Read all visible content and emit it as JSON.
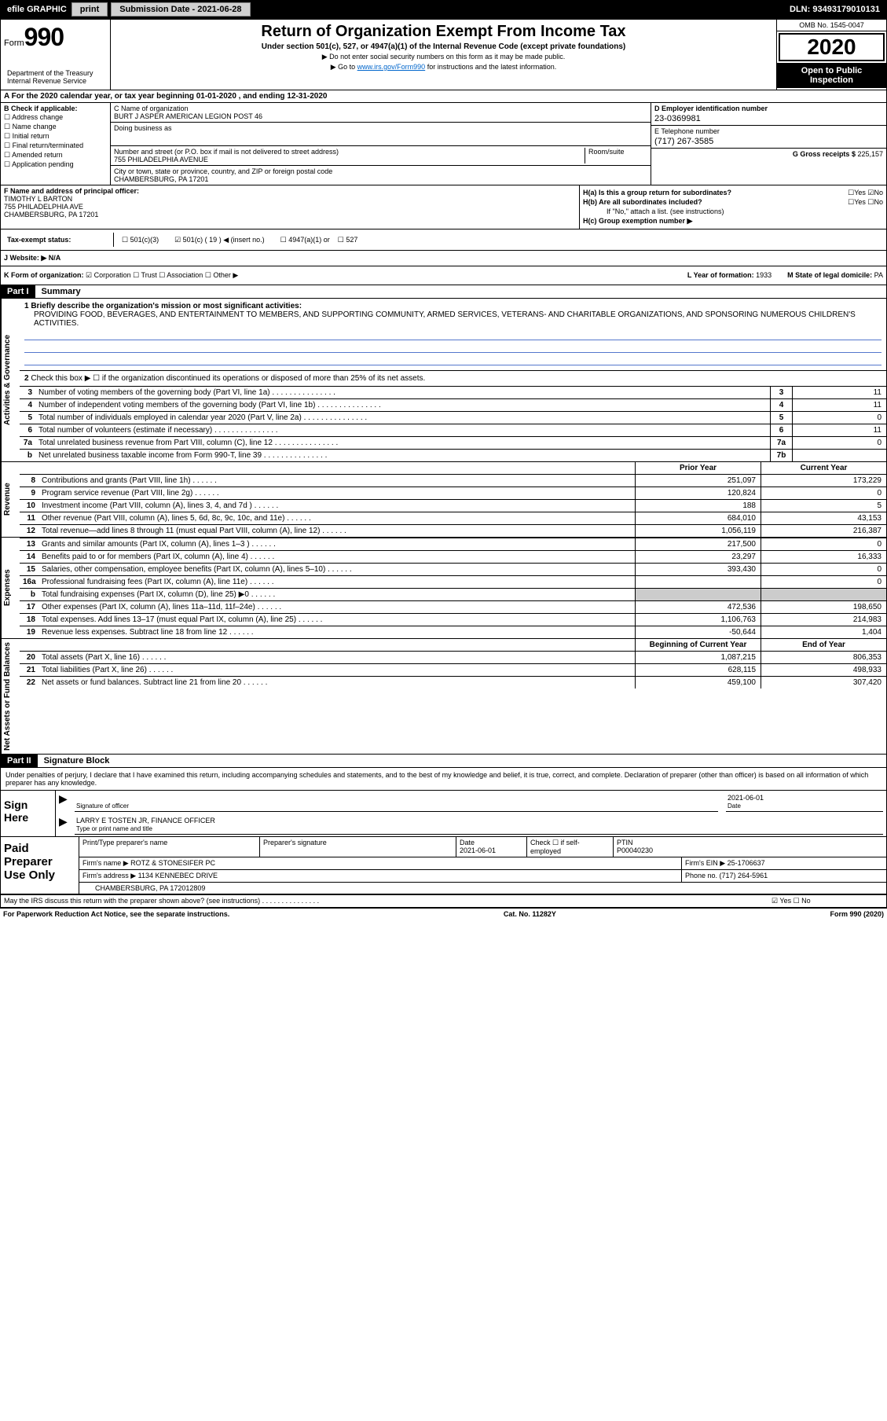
{
  "topbar": {
    "efile": "efile GRAPHIC",
    "print": "print",
    "sub_label": "Submission Date - 2021-06-28",
    "dln": "DLN: 93493179010131"
  },
  "header": {
    "form_label": "Form",
    "form_num": "990",
    "dept": "Department of the Treasury\nInternal Revenue Service",
    "title": "Return of Organization Exempt From Income Tax",
    "sub1": "Under section 501(c), 527, or 4947(a)(1) of the Internal Revenue Code (except private foundations)",
    "sub2a": "▶ Do not enter social security numbers on this form as it may be made public.",
    "sub2b": "▶ Go to ",
    "link": "www.irs.gov/Form990",
    "sub2c": " for instructions and the latest information.",
    "omb": "OMB No. 1545-0047",
    "year": "2020",
    "inspection": "Open to Public Inspection"
  },
  "rowA": "A For the 2020 calendar year, or tax year beginning 01-01-2020    , and ending 12-31-2020",
  "colB": {
    "header": "B Check if applicable:",
    "items": [
      "Address change",
      "Name change",
      "Initial return",
      "Final return/terminated",
      "Amended return",
      "Application pending"
    ]
  },
  "colC": {
    "name_label": "C Name of organization",
    "name": "BURT J ASPER AMERICAN LEGION POST 46",
    "dba_label": "Doing business as",
    "addr_label": "Number and street (or P.O. box if mail is not delivered to street address)",
    "room_label": "Room/suite",
    "addr": "755 PHILADELPHIA AVENUE",
    "city_label": "City or town, state or province, country, and ZIP or foreign postal code",
    "city": "CHAMBERSBURG, PA  17201"
  },
  "colD": {
    "ein_label": "D Employer identification number",
    "ein": "23-0369981",
    "phone_label": "E Telephone number",
    "phone": "(717) 267-3585",
    "gross_label": "G Gross receipts $ ",
    "gross": "225,157"
  },
  "rowF": {
    "label": "F  Name and address of principal officer:",
    "name": "TIMOTHY L BARTON",
    "addr1": "755 PHILADELPHIA AVE",
    "addr2": "CHAMBERSBURG, PA  17201"
  },
  "colH": {
    "ha": "H(a)  Is this a group return for subordinates?",
    "hb": "H(b)  Are all subordinates included?",
    "hb_note": "If \"No,\" attach a list. (see instructions)",
    "hc": "H(c)  Group exemption number ▶"
  },
  "rowI": {
    "label": "Tax-exempt status:",
    "opt1": "501(c)(3)",
    "opt2": "501(c) ( 19 ) ◀ (insert no.)",
    "opt3": "4947(a)(1) or",
    "opt4": "527"
  },
  "rowJ": "J   Website: ▶  N/A",
  "rowK": {
    "label": "K Form of organization:",
    "opts": [
      "Corporation",
      "Trust",
      "Association",
      "Other ▶"
    ],
    "year_label": "L Year of formation: ",
    "year": "1933",
    "state_label": "M State of legal domicile: ",
    "state": "PA"
  },
  "part1": {
    "header": "Part I",
    "title": "Summary",
    "q1_label": "1  Briefly describe the organization's mission or most significant activities:",
    "q1_text": "PROVIDING FOOD, BEVERAGES, AND ENTERTAINMENT TO MEMBERS, AND SUPPORTING COMMUNITY, ARMED SERVICES, VETERANS- AND CHARITABLE ORGANIZATIONS, AND SPONSORING NUMEROUS CHILDREN'S ACTIVITIES.",
    "q2": "Check this box ▶ ☐  if the organization discontinued its operations or disposed of more than 25% of its net assets.",
    "rows": [
      {
        "n": "3",
        "lbl": "Number of voting members of the governing body (Part VI, line 1a)",
        "box": "3",
        "val": "11"
      },
      {
        "n": "4",
        "lbl": "Number of independent voting members of the governing body (Part VI, line 1b)",
        "box": "4",
        "val": "11"
      },
      {
        "n": "5",
        "lbl": "Total number of individuals employed in calendar year 2020 (Part V, line 2a)",
        "box": "5",
        "val": "0"
      },
      {
        "n": "6",
        "lbl": "Total number of volunteers (estimate if necessary)",
        "box": "6",
        "val": "11"
      },
      {
        "n": "7a",
        "lbl": "Total unrelated business revenue from Part VIII, column (C), line 12",
        "box": "7a",
        "val": "0"
      },
      {
        "n": "b",
        "lbl": "Net unrelated business taxable income from Form 990-T, line 39",
        "box": "7b",
        "val": ""
      }
    ]
  },
  "revenue": {
    "h1": "Prior Year",
    "h2": "Current Year",
    "rows": [
      {
        "n": "8",
        "lbl": "Contributions and grants (Part VIII, line 1h)",
        "v1": "251,097",
        "v2": "173,229"
      },
      {
        "n": "9",
        "lbl": "Program service revenue (Part VIII, line 2g)",
        "v1": "120,824",
        "v2": "0"
      },
      {
        "n": "10",
        "lbl": "Investment income (Part VIII, column (A), lines 3, 4, and 7d )",
        "v1": "188",
        "v2": "5"
      },
      {
        "n": "11",
        "lbl": "Other revenue (Part VIII, column (A), lines 5, 6d, 8c, 9c, 10c, and 11e)",
        "v1": "684,010",
        "v2": "43,153"
      },
      {
        "n": "12",
        "lbl": "Total revenue—add lines 8 through 11 (must equal Part VIII, column (A), line 12)",
        "v1": "1,056,119",
        "v2": "216,387"
      }
    ]
  },
  "expenses": {
    "rows": [
      {
        "n": "13",
        "lbl": "Grants and similar amounts (Part IX, column (A), lines 1–3 )",
        "v1": "217,500",
        "v2": "0"
      },
      {
        "n": "14",
        "lbl": "Benefits paid to or for members (Part IX, column (A), line 4)",
        "v1": "23,297",
        "v2": "16,333"
      },
      {
        "n": "15",
        "lbl": "Salaries, other compensation, employee benefits (Part IX, column (A), lines 5–10)",
        "v1": "393,430",
        "v2": "0"
      },
      {
        "n": "16a",
        "lbl": "Professional fundraising fees (Part IX, column (A), line 11e)",
        "v1": "",
        "v2": "0"
      },
      {
        "n": "b",
        "lbl": "Total fundraising expenses (Part IX, column (D), line 25) ▶0",
        "v1": "",
        "v2": "",
        "shade": true
      },
      {
        "n": "17",
        "lbl": "Other expenses (Part IX, column (A), lines 11a–11d, 11f–24e)",
        "v1": "472,536",
        "v2": "198,650"
      },
      {
        "n": "18",
        "lbl": "Total expenses. Add lines 13–17 (must equal Part IX, column (A), line 25)",
        "v1": "1,106,763",
        "v2": "214,983"
      },
      {
        "n": "19",
        "lbl": "Revenue less expenses. Subtract line 18 from line 12",
        "v1": "-50,644",
        "v2": "1,404"
      }
    ]
  },
  "netassets": {
    "h1": "Beginning of Current Year",
    "h2": "End of Year",
    "rows": [
      {
        "n": "20",
        "lbl": "Total assets (Part X, line 16)",
        "v1": "1,087,215",
        "v2": "806,353"
      },
      {
        "n": "21",
        "lbl": "Total liabilities (Part X, line 26)",
        "v1": "628,115",
        "v2": "498,933"
      },
      {
        "n": "22",
        "lbl": "Net assets or fund balances. Subtract line 21 from line 20",
        "v1": "459,100",
        "v2": "307,420"
      }
    ]
  },
  "part2": {
    "header": "Part II",
    "title": "Signature Block",
    "text": "Under penalties of perjury, I declare that I have examined this return, including accompanying schedules and statements, and to the best of my knowledge and belief, it is true, correct, and complete. Declaration of preparer (other than officer) is based on all information of which preparer has any knowledge."
  },
  "sign": {
    "label": "Sign Here",
    "sig_label": "Signature of officer",
    "date_label": "Date",
    "date": "2021-06-01",
    "name": "LARRY E TOSTEN JR, FINANCE OFFICER",
    "name_label": "Type or print name and title"
  },
  "paid": {
    "label": "Paid Preparer Use Only",
    "h1": "Print/Type preparer's name",
    "h2": "Preparer's signature",
    "h3": "Date",
    "date": "2021-06-01",
    "h4": "Check ☐ if self-employed",
    "h5": "PTIN",
    "ptin": "P00040230",
    "firm_label": "Firm's name      ▶ ",
    "firm": "ROTZ & STONESIFER PC",
    "ein_label": "Firm's EIN ▶ ",
    "ein": "25-1706637",
    "addr_label": "Firm's address ▶ ",
    "addr1": "1134 KENNEBEC DRIVE",
    "addr2": "CHAMBERSBURG, PA  172012809",
    "phone_label": "Phone no. ",
    "phone": "(717) 264-5961",
    "discuss": "May the IRS discuss this return with the preparer shown above? (see instructions)"
  },
  "footer": {
    "left": "For Paperwork Reduction Act Notice, see the separate instructions.",
    "mid": "Cat. No. 11282Y",
    "right": "Form 990 (2020)"
  },
  "vtabs": {
    "gov": "Activities & Governance",
    "rev": "Revenue",
    "exp": "Expenses",
    "net": "Net Assets or Fund Balances"
  }
}
